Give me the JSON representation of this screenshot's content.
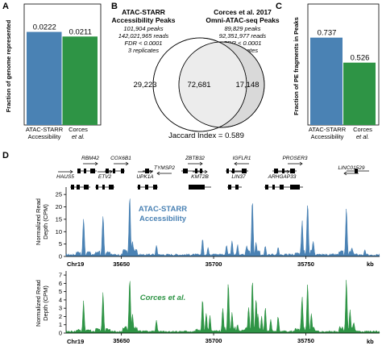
{
  "panels": {
    "A": "A",
    "B": "B",
    "C": "C",
    "D": "D"
  },
  "chart_data": [
    {
      "panel": "A",
      "type": "bar",
      "categories": [
        "ATAC-STARR Accessibility",
        "Corces et al."
      ],
      "values": [
        0.0222,
        0.0211
      ],
      "value_labels": [
        "0.0222",
        "0.0211"
      ],
      "ylabel": "Fraction of genome represented",
      "ylim": [
        0,
        0.025
      ],
      "colors": [
        "#4a82b4",
        "#2e9445"
      ],
      "grid": false
    },
    {
      "panel": "C",
      "type": "bar",
      "categories": [
        "ATAC-STARR Accessibility",
        "Corces et al."
      ],
      "values": [
        0.737,
        0.526
      ],
      "value_labels": [
        "0.737",
        "0.526"
      ],
      "ylabel": "Fraction of PE fragments in Peaks",
      "ylim": [
        0,
        1.0
      ],
      "colors": [
        "#4a82b4",
        "#2e9445"
      ],
      "grid": false
    },
    {
      "panel": "D-top",
      "type": "area",
      "series_label": "ATAC-STARR Accessibility",
      "ylabel": "Normalized Read Depth (CPM)",
      "yticks": [
        0,
        5,
        10,
        15,
        20,
        25
      ],
      "ylim": [
        0,
        27
      ],
      "xticks": [
        35650,
        35700,
        35750
      ],
      "xlim": [
        35620,
        35790
      ],
      "chrom": "Chr19",
      "xunit": "kb",
      "color": "#4a82b4",
      "peaks": [
        [
          35629.5,
          17
        ],
        [
          35640,
          19
        ],
        [
          35654.5,
          26
        ],
        [
          35656,
          7
        ],
        [
          35669,
          5
        ],
        [
          35694,
          8
        ],
        [
          35697,
          4
        ],
        [
          35707,
          5
        ],
        [
          35710,
          7
        ],
        [
          35713,
          5
        ],
        [
          35718,
          5
        ],
        [
          35721,
          24
        ],
        [
          35723,
          6
        ],
        [
          35728,
          5
        ],
        [
          35735,
          4
        ],
        [
          35748,
          15
        ],
        [
          35751,
          24
        ],
        [
          35754,
          7
        ],
        [
          35772,
          20
        ],
        [
          35775,
          4
        ],
        [
          35782,
          3
        ]
      ]
    },
    {
      "panel": "D-bottom",
      "type": "area",
      "series_label": "Corces et al.",
      "ylabel": "Normalized Read Depth (CPM)",
      "yticks": [
        0,
        1,
        2,
        3,
        4,
        5,
        6,
        7
      ],
      "ylim": [
        0,
        7.3
      ],
      "xticks": [
        35650,
        35700,
        35750
      ],
      "xlim": [
        35620,
        35790
      ],
      "chrom": "Chr19",
      "xunit": "kb",
      "color": "#2e9445",
      "peaks": [
        [
          35629.5,
          4
        ],
        [
          35640,
          5
        ],
        [
          35654.5,
          6.9
        ],
        [
          35656,
          2.5
        ],
        [
          35669,
          1.6
        ],
        [
          35694,
          4.3
        ],
        [
          35696,
          2.5
        ],
        [
          35698,
          2.2
        ],
        [
          35705,
          3.2
        ],
        [
          35708,
          6.8
        ],
        [
          35710,
          2.6
        ],
        [
          35713,
          1.2
        ],
        [
          35719,
          3.5
        ],
        [
          35721,
          6.5
        ],
        [
          35723,
          4.4
        ],
        [
          35724,
          2.5
        ],
        [
          35726,
          2.1
        ],
        [
          35728,
          3.2
        ],
        [
          35731,
          1.8
        ],
        [
          35735,
          2.2
        ],
        [
          35748,
          5
        ],
        [
          35751,
          6.3
        ],
        [
          35753,
          2.5
        ],
        [
          35772,
          7
        ],
        [
          35774,
          3
        ],
        [
          35776,
          1.5
        ]
      ]
    }
  ],
  "venn": {
    "left_title_1": "ATAC-STARR",
    "left_title_2": "Accessibility Peaks",
    "left_stats": [
      "101,904 peaks",
      "142,021,965 reads",
      "FDR < 0.0001",
      "3 replicates"
    ],
    "right_title_1": "Corces et al. 2017",
    "right_title_2": "Omni-ATAC-seq Peaks",
    "right_stats": [
      "89,829 peaks",
      "92,351,977 reads",
      "FDR < 0.0001",
      "2 replicates"
    ],
    "left_only": "29,223",
    "overlap": "72,681",
    "right_only": "17,148",
    "jaccard": "Jaccard Index = 0.589"
  },
  "track": {
    "top_label_1": "ATAC-STARR",
    "top_label_2": "Accessibility",
    "bottom_label": "Corces et al.",
    "genes": [
      "RBM42",
      "COX6B1",
      "TYMSP2",
      "ZBTB32",
      "IGFLR1",
      "PROSER3",
      "HAUS5",
      "ETV2",
      "UPK1A",
      "KMT2B",
      "LIN37",
      "ARHGAP33",
      "LINC01529"
    ]
  }
}
